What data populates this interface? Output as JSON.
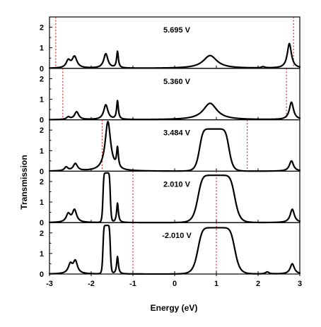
{
  "chart_data": {
    "type": "line",
    "xlabel": "Energy (eV)",
    "ylabel": "Transmission",
    "xlim": [
      -3,
      3
    ],
    "ylim": [
      0,
      2.5
    ],
    "x_ticks": [
      -3,
      -2,
      -1,
      0,
      1,
      2,
      3
    ],
    "y_ticks": [
      0,
      1,
      2
    ],
    "grid": false,
    "panels": [
      {
        "label": "5.695 V",
        "bias_window": [
          -2.85,
          2.85
        ],
        "peaks": [
          {
            "center": -2.55,
            "height": 0.35,
            "width": 0.06
          },
          {
            "center": -2.4,
            "height": 0.55,
            "width": 0.07
          },
          {
            "center": -1.65,
            "height": 0.7,
            "width": 0.06
          },
          {
            "center": -1.37,
            "height": 0.8,
            "width": 0.025
          },
          {
            "center": 0.85,
            "height": 0.62,
            "width": 0.2
          },
          {
            "center": 2.12,
            "height": 0.06,
            "width": 0.05
          },
          {
            "center": 2.75,
            "height": 1.2,
            "width": 0.06
          }
        ]
      },
      {
        "label": "5.360 V",
        "bias_window": [
          -2.68,
          2.68
        ],
        "peaks": [
          {
            "center": -2.55,
            "height": 0.12,
            "width": 0.05
          },
          {
            "center": -2.35,
            "height": 0.38,
            "width": 0.06
          },
          {
            "center": -1.65,
            "height": 0.72,
            "width": 0.06
          },
          {
            "center": -1.37,
            "height": 0.9,
            "width": 0.025
          },
          {
            "center": 0.85,
            "height": 0.8,
            "width": 0.2
          },
          {
            "center": 2.8,
            "height": 0.85,
            "width": 0.06
          }
        ]
      },
      {
        "label": "3.484 V",
        "bias_window": [
          -1.74,
          1.74
        ],
        "peaks": [
          {
            "center": -2.6,
            "height": 0.18,
            "width": 0.05
          },
          {
            "center": -2.38,
            "height": 0.35,
            "width": 0.06
          },
          {
            "center": -1.6,
            "height": 2.4,
            "width": 0.08
          },
          {
            "center": -1.37,
            "height": 0.95,
            "width": 0.025
          },
          {
            "center": 0.95,
            "height": 2.05,
            "width": 0.36,
            "flat": true
          },
          {
            "center": 2.8,
            "height": 0.5,
            "width": 0.06
          }
        ]
      },
      {
        "label": "2.010 V",
        "bias_window": [
          -1.0,
          1.0
        ],
        "peaks": [
          {
            "center": -2.55,
            "height": 0.4,
            "width": 0.06
          },
          {
            "center": -2.4,
            "height": 0.6,
            "width": 0.06
          },
          {
            "center": -1.63,
            "height": 2.4,
            "width": 0.09,
            "flat": true
          },
          {
            "center": -1.37,
            "height": 0.95,
            "width": 0.025
          },
          {
            "center": 1.0,
            "height": 2.3,
            "width": 0.45,
            "flat": true
          },
          {
            "center": 2.82,
            "height": 0.65,
            "width": 0.06
          }
        ]
      },
      {
        "label": "-2.010 V",
        "bias_window": [
          -1.0,
          1.0
        ],
        "peaks": [
          {
            "center": -2.5,
            "height": 0.45,
            "width": 0.06
          },
          {
            "center": -2.38,
            "height": 0.6,
            "width": 0.06
          },
          {
            "center": -1.63,
            "height": 2.35,
            "width": 0.09,
            "flat": true
          },
          {
            "center": -1.37,
            "height": 0.85,
            "width": 0.025
          },
          {
            "center": 1.0,
            "height": 2.25,
            "width": 0.45,
            "flat": true
          },
          {
            "center": 2.22,
            "height": 0.1,
            "width": 0.05
          },
          {
            "center": 2.82,
            "height": 0.5,
            "width": 0.06
          }
        ]
      }
    ]
  }
}
